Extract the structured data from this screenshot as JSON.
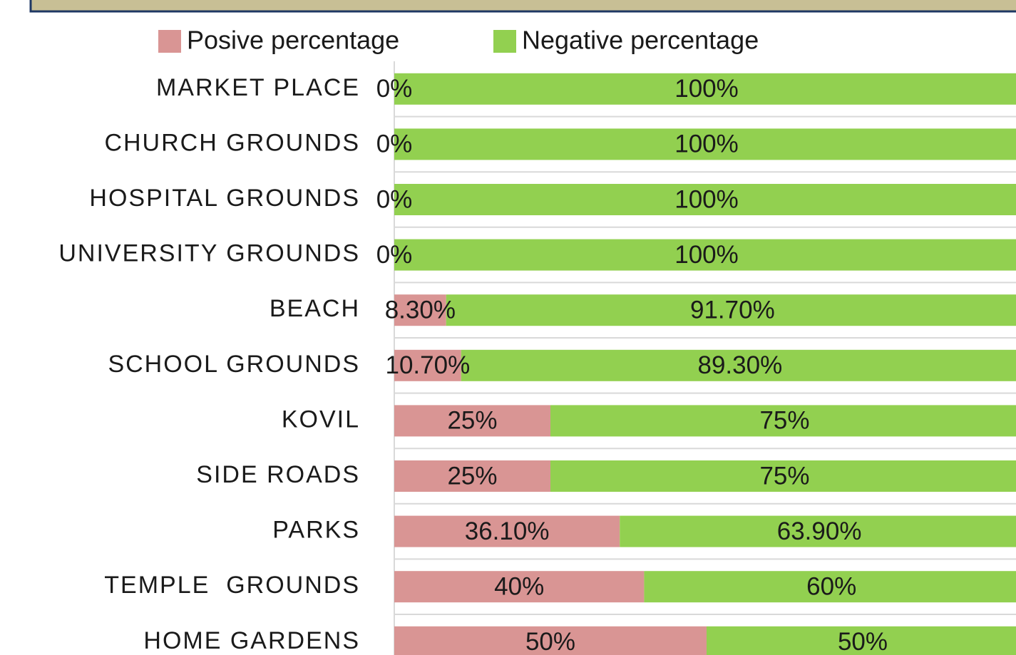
{
  "chart_data": {
    "type": "stacked-bar-horizontal",
    "categories": [
      "MARKET PLACE",
      "CHURCH GROUNDS",
      "HOSPITAL GROUNDS",
      "UNIVERSITY GROUNDS",
      "BEACH",
      "SCHOOL GROUNDS",
      "KOVIL",
      "SIDE ROADS",
      "PARKS",
      "TEMPLE  GROUNDS",
      "HOME GARDENS"
    ],
    "series": [
      {
        "name": "Posive percentage",
        "color": "#d99594",
        "values": [
          0,
          0,
          0,
          0,
          8.3,
          10.7,
          25,
          25,
          36.1,
          40,
          50
        ],
        "value_labels": [
          "0%",
          "0%",
          "0%",
          "0%",
          "8.30%",
          "10.70%",
          "25%",
          "25%",
          "36.10%",
          "40%",
          "50%"
        ]
      },
      {
        "name": "Negative percentage",
        "color": "#92d050",
        "values": [
          100,
          100,
          100,
          100,
          91.7,
          89.3,
          75,
          75,
          63.9,
          60,
          50
        ],
        "value_labels": [
          "100%",
          "100%",
          "100%",
          "100%",
          "91.70%",
          "89.30%",
          "75%",
          "75%",
          "63.90%",
          "60%",
          "50%"
        ]
      }
    ],
    "xlim": [
      0,
      100
    ],
    "legend": "top"
  }
}
